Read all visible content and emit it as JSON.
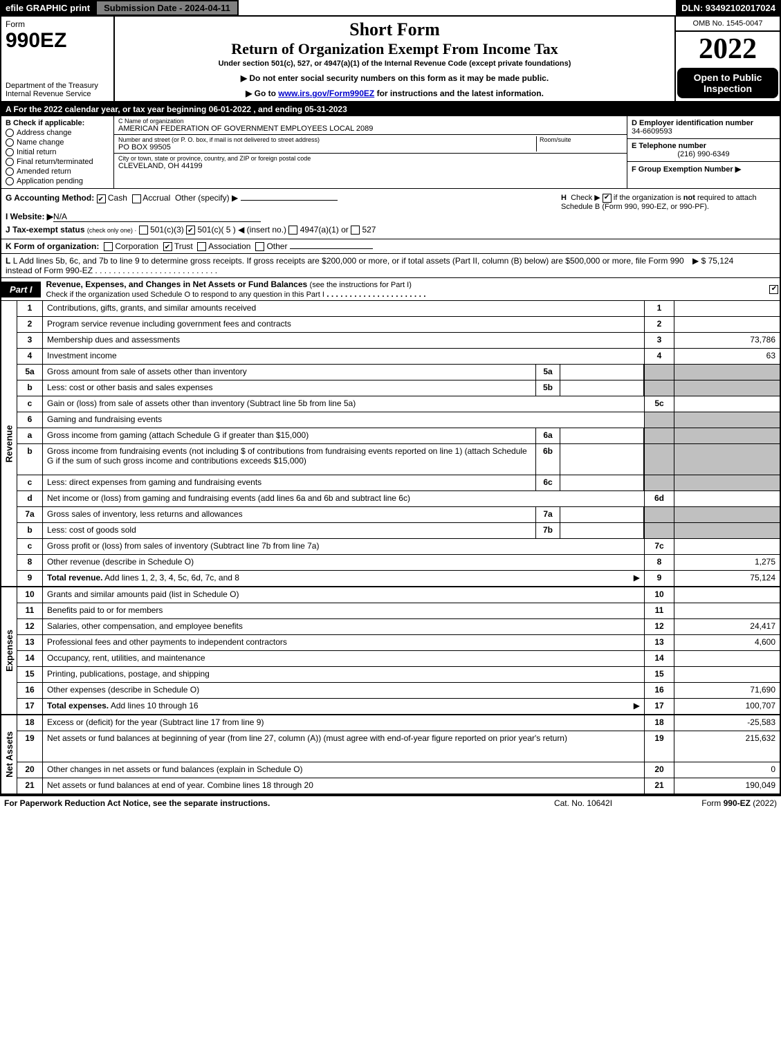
{
  "topbar": {
    "efile": "efile GRAPHIC print",
    "submission": "Submission Date - 2024-04-11",
    "dln": "DLN: 93492102017024"
  },
  "header": {
    "form_label": "Form",
    "form_number": "990EZ",
    "department": "Department of the Treasury\nInternal Revenue Service",
    "short_form": "Short Form",
    "return_title": "Return of Organization Exempt From Income Tax",
    "subtitle": "Under section 501(c), 527, or 4947(a)(1) of the Internal Revenue Code (except private foundations)",
    "instr1": "▶ Do not enter social security numbers on this form as it may be made public.",
    "instr2": "▶ Go to www.irs.gov/Form990EZ for instructions and the latest information.",
    "omb": "OMB No. 1545-0047",
    "year": "2022",
    "open_public": "Open to Public Inspection"
  },
  "sectionA": "A  For the 2022 calendar year, or tax year beginning 06-01-2022 , and ending 05-31-2023",
  "sectionB": {
    "header": "B  Check if applicable:",
    "items": [
      "Address change",
      "Name change",
      "Initial return",
      "Final return/terminated",
      "Amended return",
      "Application pending"
    ]
  },
  "sectionC": {
    "name_label": "C Name of organization",
    "name": "AMERICAN FEDERATION OF GOVERNMENT EMPLOYEES LOCAL 2089",
    "street_label": "Number and street (or P. O. box, if mail is not delivered to street address)",
    "room_label": "Room/suite",
    "street": "PO BOX 99505",
    "city_label": "City or town, state or province, country, and ZIP or foreign postal code",
    "city": "CLEVELAND, OH  44199"
  },
  "sectionDE": {
    "d_label": "D Employer identification number",
    "d_value": "34-6609593",
    "e_label": "E Telephone number",
    "e_value": "(216) 990-6349",
    "f_label": "F Group Exemption Number  ▶"
  },
  "sectionG": {
    "label": "G Accounting Method:",
    "cash": "Cash",
    "accrual": "Accrual",
    "other": "Other (specify) ▶"
  },
  "sectionH": {
    "text": "H  Check ▶ ☑ if the organization is not required to attach Schedule B (Form 990, 990-EZ, or 990-PF)."
  },
  "sectionI": {
    "label": "I Website: ▶",
    "value": "N/A"
  },
  "sectionJ": {
    "label": "J Tax-exempt status",
    "note": "(check only one) ·",
    "opt1": "501(c)(3)",
    "opt2": "501(c)( 5 ) ◀ (insert no.)",
    "opt3": "4947(a)(1) or",
    "opt4": "527"
  },
  "sectionK": {
    "label": "K Form of organization:",
    "opts": [
      "Corporation",
      "Trust",
      "Association",
      "Other"
    ]
  },
  "sectionL": {
    "text": "L Add lines 5b, 6c, and 7b to line 9 to determine gross receipts. If gross receipts are $200,000 or more, or if total assets (Part II, column (B) below) are $500,000 or more, file Form 990 instead of Form 990-EZ",
    "amount": "▶ $ 75,124"
  },
  "part1": {
    "tab": "Part I",
    "title": "Revenue, Expenses, and Changes in Net Assets or Fund Balances",
    "note": "(see the instructions for Part I)",
    "sub": "Check if the organization used Schedule O to respond to any question in this Part I"
  },
  "revenue": {
    "label": "Revenue",
    "rows": [
      {
        "n": "1",
        "desc": "Contributions, gifts, grants, and similar amounts received",
        "rn": "1",
        "val": ""
      },
      {
        "n": "2",
        "desc": "Program service revenue including government fees and contracts",
        "rn": "2",
        "val": ""
      },
      {
        "n": "3",
        "desc": "Membership dues and assessments",
        "rn": "3",
        "val": "73,786"
      },
      {
        "n": "4",
        "desc": "Investment income",
        "rn": "4",
        "val": "63"
      },
      {
        "n": "5a",
        "desc": "Gross amount from sale of assets other than inventory",
        "sub_n": "5a",
        "shaded": true
      },
      {
        "n": "b",
        "desc": "Less: cost or other basis and sales expenses",
        "sub_n": "5b",
        "shaded": true
      },
      {
        "n": "c",
        "desc": "Gain or (loss) from sale of assets other than inventory (Subtract line 5b from line 5a)",
        "rn": "5c",
        "val": ""
      },
      {
        "n": "6",
        "desc": "Gaming and fundraising events",
        "shaded": true,
        "no_right": true
      },
      {
        "n": "a",
        "desc": "Gross income from gaming (attach Schedule G if greater than $15,000)",
        "sub_n": "6a",
        "shaded": true
      },
      {
        "n": "b",
        "desc": "Gross income from fundraising events (not including $                           of contributions from fundraising events reported on line 1) (attach Schedule G if the sum of such gross income and contributions exceeds $15,000)",
        "sub_n": "6b",
        "shaded": true,
        "tall": true
      },
      {
        "n": "c",
        "desc": "Less: direct expenses from gaming and fundraising events",
        "sub_n": "6c",
        "shaded": true
      },
      {
        "n": "d",
        "desc": "Net income or (loss) from gaming and fundraising events (add lines 6a and 6b and subtract line 6c)",
        "rn": "6d",
        "val": ""
      },
      {
        "n": "7a",
        "desc": "Gross sales of inventory, less returns and allowances",
        "sub_n": "7a",
        "shaded": true
      },
      {
        "n": "b",
        "desc": "Less: cost of goods sold",
        "sub_n": "7b",
        "shaded": true
      },
      {
        "n": "c",
        "desc": "Gross profit or (loss) from sales of inventory (Subtract line 7b from line 7a)",
        "rn": "7c",
        "val": ""
      },
      {
        "n": "8",
        "desc": "Other revenue (describe in Schedule O)",
        "rn": "8",
        "val": "1,275"
      },
      {
        "n": "9",
        "desc": "Total revenue. Add lines 1, 2, 3, 4, 5c, 6d, 7c, and 8",
        "rn": "9",
        "val": "75,124",
        "bold": true,
        "arrow": true
      }
    ]
  },
  "expenses": {
    "label": "Expenses",
    "rows": [
      {
        "n": "10",
        "desc": "Grants and similar amounts paid (list in Schedule O)",
        "rn": "10",
        "val": ""
      },
      {
        "n": "11",
        "desc": "Benefits paid to or for members",
        "rn": "11",
        "val": ""
      },
      {
        "n": "12",
        "desc": "Salaries, other compensation, and employee benefits",
        "rn": "12",
        "val": "24,417"
      },
      {
        "n": "13",
        "desc": "Professional fees and other payments to independent contractors",
        "rn": "13",
        "val": "4,600"
      },
      {
        "n": "14",
        "desc": "Occupancy, rent, utilities, and maintenance",
        "rn": "14",
        "val": ""
      },
      {
        "n": "15",
        "desc": "Printing, publications, postage, and shipping",
        "rn": "15",
        "val": ""
      },
      {
        "n": "16",
        "desc": "Other expenses (describe in Schedule O)",
        "rn": "16",
        "val": "71,690"
      },
      {
        "n": "17",
        "desc": "Total expenses. Add lines 10 through 16",
        "rn": "17",
        "val": "100,707",
        "bold": true,
        "arrow": true
      }
    ]
  },
  "netassets": {
    "label": "Net Assets",
    "rows": [
      {
        "n": "18",
        "desc": "Excess or (deficit) for the year (Subtract line 17 from line 9)",
        "rn": "18",
        "val": "-25,583"
      },
      {
        "n": "19",
        "desc": "Net assets or fund balances at beginning of year (from line 27, column (A)) (must agree with end-of-year figure reported on prior year's return)",
        "rn": "19",
        "val": "215,632",
        "tall": true
      },
      {
        "n": "20",
        "desc": "Other changes in net assets or fund balances (explain in Schedule O)",
        "rn": "20",
        "val": "0"
      },
      {
        "n": "21",
        "desc": "Net assets or fund balances at end of year. Combine lines 18 through 20",
        "rn": "21",
        "val": "190,049"
      }
    ]
  },
  "footer": {
    "left": "For Paperwork Reduction Act Notice, see the separate instructions.",
    "center": "Cat. No. 10642I",
    "right": "Form 990-EZ (2022)"
  }
}
